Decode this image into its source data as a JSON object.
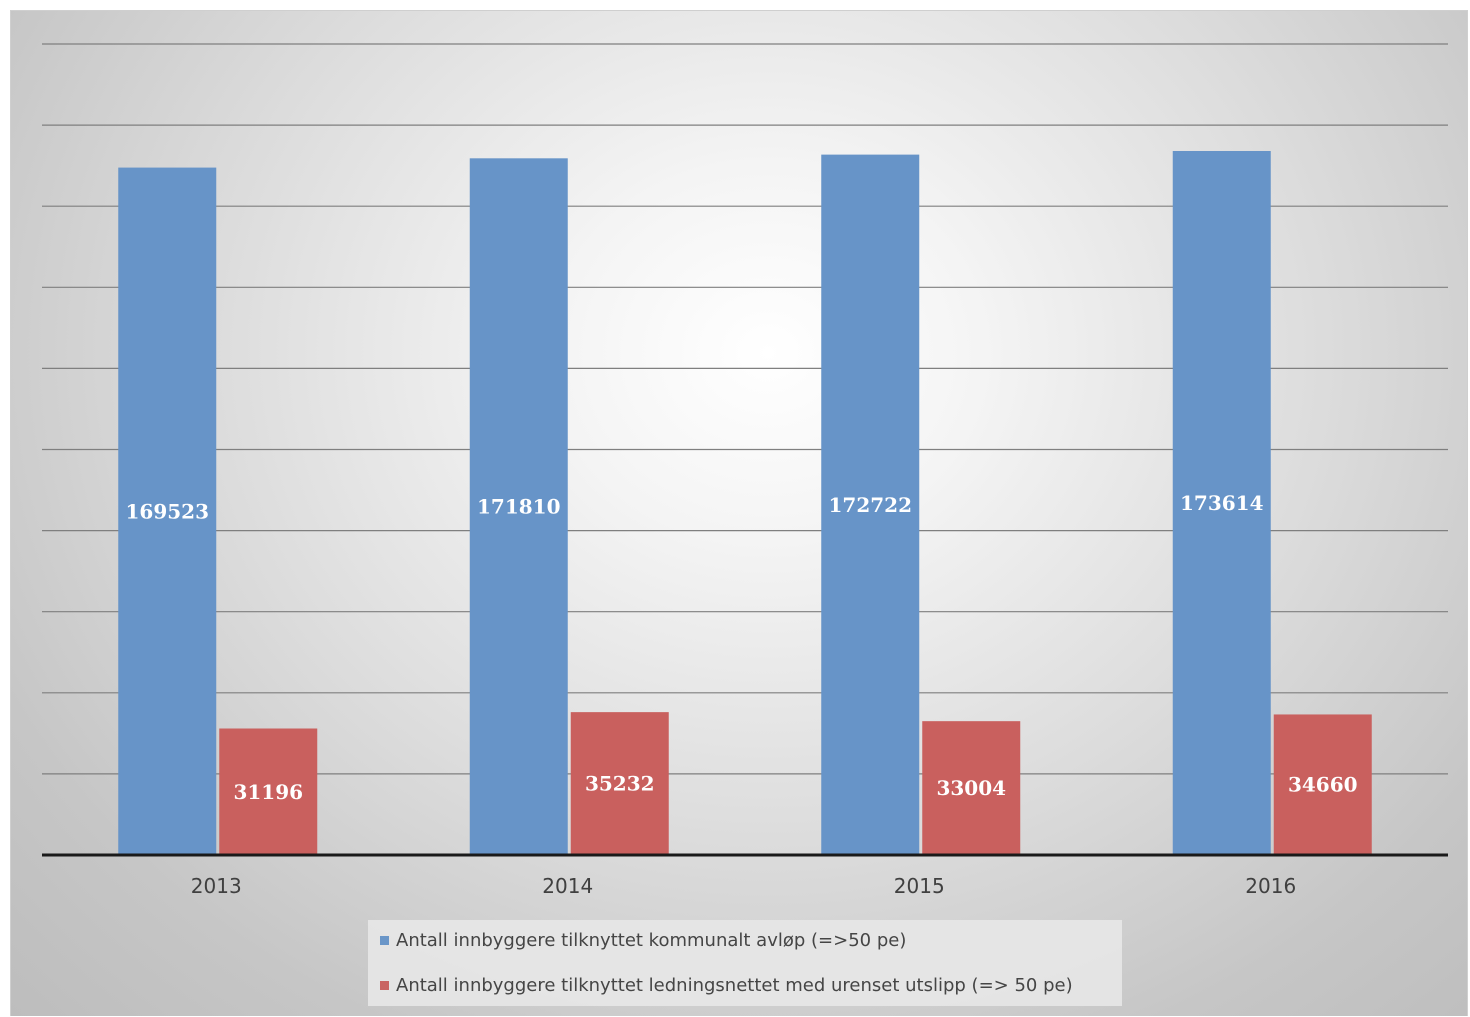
{
  "chart_data": {
    "type": "bar",
    "categories": [
      "2013",
      "2014",
      "2015",
      "2016"
    ],
    "series": [
      {
        "name": "Antall innbyggere tilknyttet kommunalt avløp (=>50 pe)",
        "values": [
          169523,
          171810,
          172722,
          173614
        ],
        "color": "#6794c8"
      },
      {
        "name": "Antall innbyggere tilknyttet ledningsnettet med urenset utslipp (=> 50 pe)",
        "values": [
          31196,
          35232,
          33004,
          34660
        ],
        "color": "#c9605e"
      }
    ],
    "title": "",
    "xlabel": "",
    "ylabel": "",
    "ylim": [
      0,
      200000
    ],
    "grid": true,
    "legend_position": "bottom"
  }
}
